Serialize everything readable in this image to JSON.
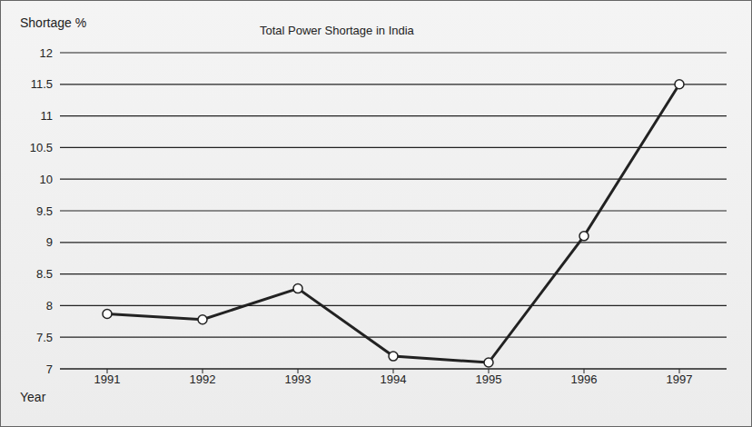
{
  "chart_data": {
    "type": "line",
    "title": "Total Power Shortage in India",
    "y_label": "Shortage %",
    "x_label": "Year",
    "categories": [
      "1991",
      "1992",
      "1993",
      "1994",
      "1995",
      "1996",
      "1997"
    ],
    "values": [
      7.87,
      7.78,
      8.27,
      7.2,
      7.1,
      9.1,
      11.5
    ],
    "color": "#222222",
    "marker": "circle",
    "ylim": [
      7,
      12
    ],
    "yticks": [
      7,
      7.5,
      8,
      8.5,
      9,
      9.5,
      10,
      10.5,
      11,
      11.5,
      12
    ],
    "grid": true
  }
}
